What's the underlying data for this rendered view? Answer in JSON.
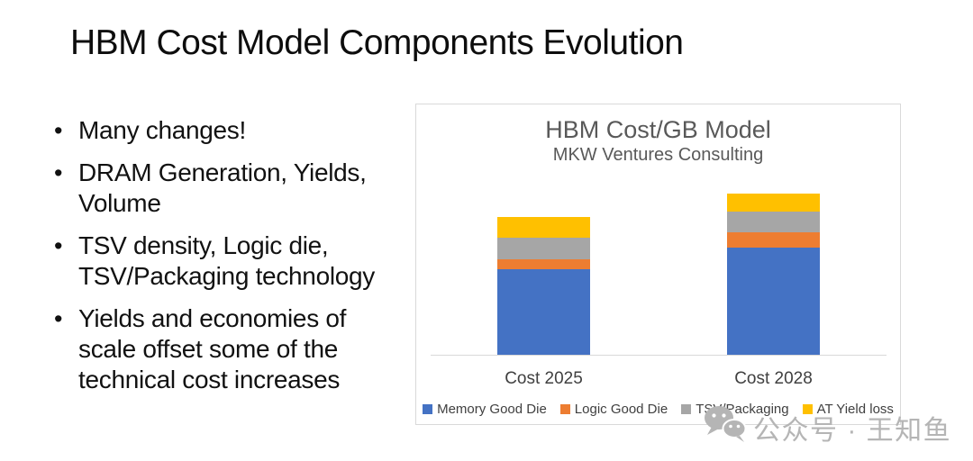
{
  "slide": {
    "title": "HBM Cost Model Components Evolution",
    "bullets": [
      {
        "lines": [
          "Many changes!"
        ]
      },
      {
        "lines": [
          "DRAM Generation, Yields,",
          "Volume"
        ]
      },
      {
        "lines": [
          "TSV density, Logic die,",
          "TSV/Packaging technology"
        ]
      },
      {
        "lines": [
          "Yields and economies of",
          "scale offset some of the",
          "technical cost increases"
        ]
      }
    ]
  },
  "chart_data": {
    "type": "bar",
    "stacked": true,
    "title": "HBM Cost/GB Model",
    "subtitle": "MKW Ventures Consulting",
    "categories": [
      "Cost 2025",
      "Cost 2028"
    ],
    "series": [
      {
        "name": "Memory Good Die",
        "color": "#4472c4",
        "values": [
          0.62,
          0.78
        ]
      },
      {
        "name": "Logic Good Die",
        "color": "#ed7d31",
        "values": [
          0.07,
          0.11
        ]
      },
      {
        "name": "TSV/Packaging",
        "color": "#a6a6a6",
        "values": [
          0.16,
          0.15
        ]
      },
      {
        "name": "AT Yield loss",
        "color": "#ffc000",
        "values": [
          0.15,
          0.13
        ]
      }
    ],
    "units": "relative cost per GB (2025 total = 1.00)",
    "totals": [
      1.0,
      1.17
    ],
    "xlabel": "",
    "ylabel": "",
    "y_axis_labels_visible": false,
    "grid": false,
    "legend_position": "bottom",
    "colors": {
      "chart_border": "#d9d9d9",
      "axis_line": "#d9d9d9",
      "title_text": "#595959",
      "label_text": "#404040"
    }
  },
  "watermark": {
    "icon": "wechat-icon",
    "text": "公众号 · 王知鱼",
    "color": "#b5b5b5"
  }
}
